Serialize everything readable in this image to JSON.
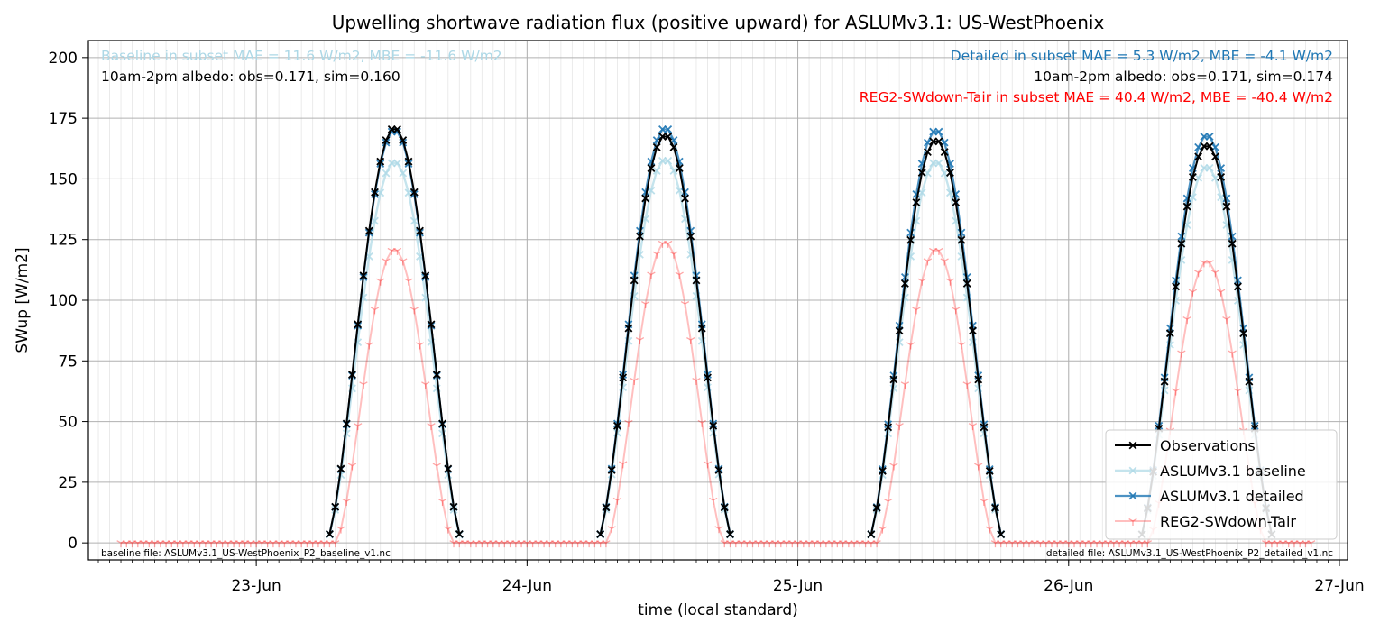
{
  "chart_data": {
    "type": "line",
    "title": "Upwelling shortwave radiation flux (positive upward) for ASLUMv3.1: US-WestPhoenix",
    "xlabel": "time (local standard)",
    "ylabel": "SWup [W/m2]",
    "ylim": [
      -7,
      207
    ],
    "yticks": [
      0,
      25,
      50,
      75,
      100,
      125,
      150,
      175,
      200
    ],
    "xlim": [
      -0.62,
      4.03
    ],
    "xtick_labels": [
      "23-Jun",
      "24-Jun",
      "25-Jun",
      "26-Jun",
      "27-Jun"
    ],
    "grid": true,
    "legend_position": "lower right",
    "time_step_hours": 0.5,
    "series": [
      {
        "name": "Observations",
        "color": "#000000",
        "marker": "x",
        "days": [
          {
            "day": 0,
            "start_hour": 6.5,
            "end_hour": 18.0,
            "peak": 171
          },
          {
            "day": 1,
            "start_hour": 6.5,
            "end_hour": 18.0,
            "peak": 168
          },
          {
            "day": 2,
            "start_hour": 6.5,
            "end_hour": 18.0,
            "peak": 166
          },
          {
            "day": 3,
            "start_hour": 6.5,
            "end_hour": 18.0,
            "peak": 164
          }
        ]
      },
      {
        "name": "ASLUMv3.1 baseline",
        "color": "#add8e6",
        "marker": "x",
        "days": [
          {
            "day": 0,
            "start_hour": 6.5,
            "end_hour": 18.0,
            "peak": 157
          },
          {
            "day": 1,
            "start_hour": 6.5,
            "end_hour": 18.0,
            "peak": 158
          },
          {
            "day": 2,
            "start_hour": 6.5,
            "end_hour": 18.0,
            "peak": 157
          },
          {
            "day": 3,
            "start_hour": 6.5,
            "end_hour": 18.0,
            "peak": 155
          }
        ]
      },
      {
        "name": "ASLUMv3.1 detailed",
        "color": "#1f77b4",
        "marker": "x",
        "days": [
          {
            "day": 0,
            "start_hour": 6.5,
            "end_hour": 18.0,
            "peak": 170
          },
          {
            "day": 1,
            "start_hour": 6.5,
            "end_hour": 18.0,
            "peak": 171
          },
          {
            "day": 2,
            "start_hour": 6.5,
            "end_hour": 18.0,
            "peak": 170
          },
          {
            "day": 3,
            "start_hour": 6.5,
            "end_hour": 18.0,
            "peak": 168
          }
        ]
      },
      {
        "name": "REG2-SWdown-Tair",
        "color": "#ff0000",
        "marker": "1",
        "continuous": true,
        "start_time": -0.5,
        "end_time": 3.9,
        "days": [
          {
            "day": 0,
            "start_hour": 7.0,
            "end_hour": 17.5,
            "peak": 121
          },
          {
            "day": 1,
            "start_hour": 7.0,
            "end_hour": 17.5,
            "peak": 124
          },
          {
            "day": 2,
            "start_hour": 7.0,
            "end_hour": 17.5,
            "peak": 121
          },
          {
            "day": 3,
            "start_hour": 7.0,
            "end_hour": 17.5,
            "peak": 116
          }
        ]
      }
    ],
    "annotations": {
      "baseline_stats": "Baseline in subset MAE = 11.6 W/m2, MBE = -11.6 W/m2",
      "baseline_albedo": "10am-2pm albedo: obs=0.171, sim=0.160",
      "detailed_stats": "Detailed in subset MAE = 5.3 W/m2, MBE = -4.1 W/m2",
      "detailed_albedo": "10am-2pm albedo: obs=0.171, sim=0.174",
      "reg_stats": "REG2-SWdown-Tair in subset MAE = 40.4 W/m2, MBE = -40.4 W/m2",
      "baseline_file": "baseline file: ASLUMv3.1_US-WestPhoenix_P2_baseline_v1.nc",
      "detailed_file": "detailed file: ASLUMv3.1_US-WestPhoenix_P2_detailed_v1.nc"
    },
    "annotation_colors": {
      "baseline": "#add8e6",
      "detailed": "#1f77b4",
      "reg": "#ff0000",
      "albedo": "#000000"
    }
  }
}
